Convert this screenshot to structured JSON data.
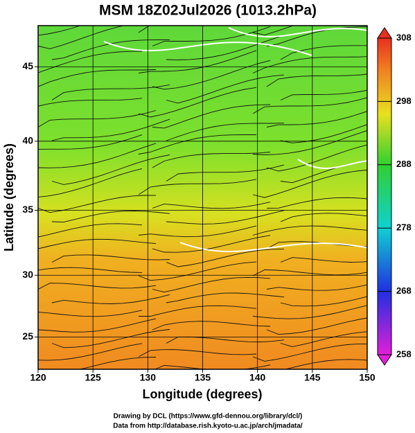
{
  "map": {
    "title": "MSM 18Z02Jul2026 (1013.2hPa)",
    "xlabel": "Longitude (degrees)",
    "ylabel": "Latitude  (degrees)",
    "projection": "mercator",
    "xlim": [
      120,
      150
    ],
    "ylim": [
      22.3,
      47.6
    ],
    "xticks": [
      120,
      125,
      130,
      135,
      140,
      145,
      150
    ],
    "yticks": [
      25,
      30,
      35,
      40,
      45
    ],
    "grid": true,
    "colorbar": {
      "range": [
        258,
        308
      ],
      "ticks": [
        258,
        268,
        278,
        288,
        298,
        308
      ]
    },
    "credits": [
      "Drawing by DCL (https://www.gfd-dennou.org/library/dcl/)",
      "Data from http://database.rish.kyoto-u.ac.jp/arch/jmadata/"
    ]
  }
}
